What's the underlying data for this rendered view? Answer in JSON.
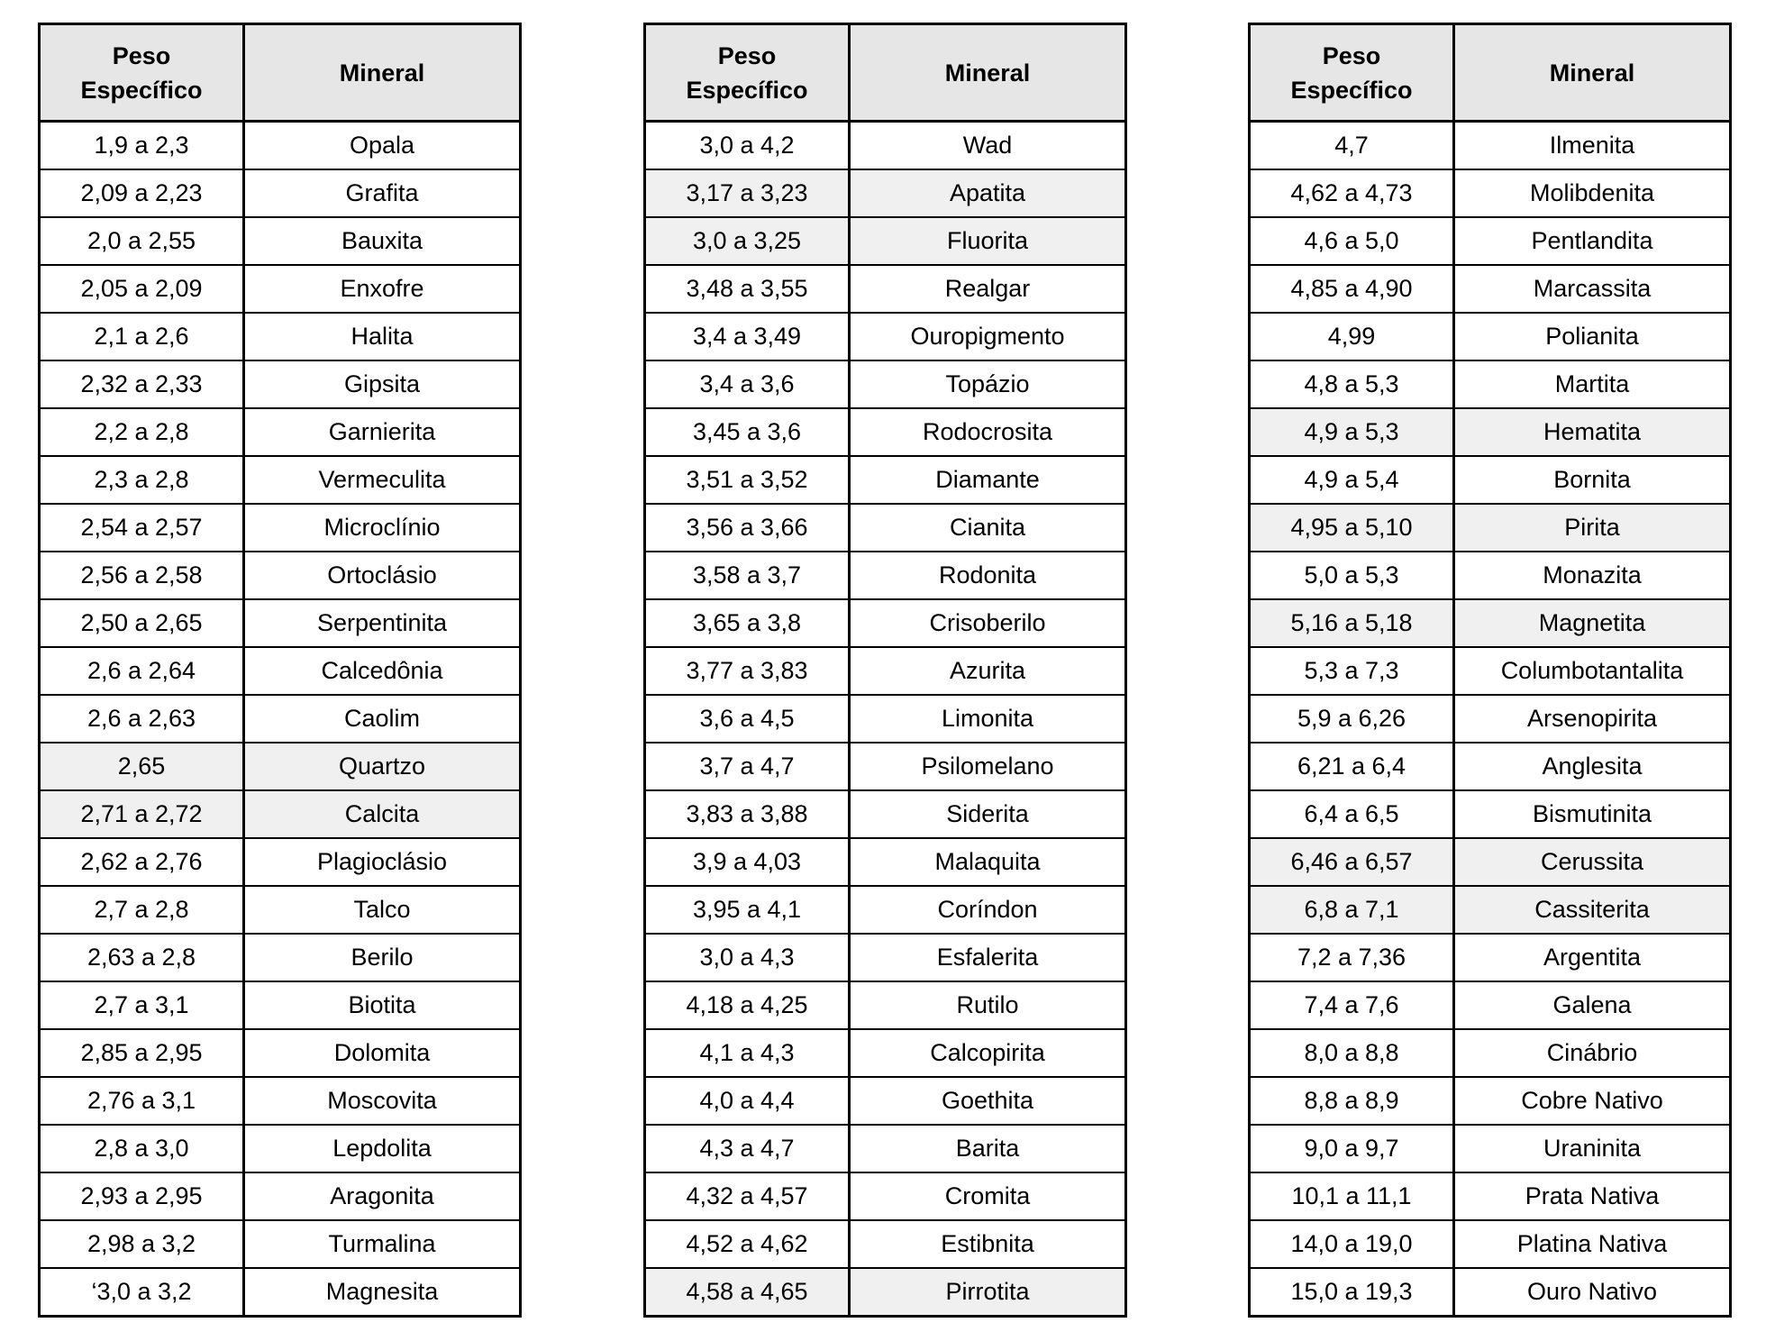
{
  "headers": {
    "peso": "Peso Específico",
    "mineral": "Mineral"
  },
  "tables": [
    {
      "rows": [
        {
          "peso": "1,9 a 2,3",
          "mineral": "Opala",
          "highlight": false
        },
        {
          "peso": "2,09 a 2,23",
          "mineral": "Grafita",
          "highlight": false
        },
        {
          "peso": "2,0 a 2,55",
          "mineral": "Bauxita",
          "highlight": false
        },
        {
          "peso": "2,05 a 2,09",
          "mineral": "Enxofre",
          "highlight": false
        },
        {
          "peso": "2,1 a 2,6",
          "mineral": "Halita",
          "highlight": false
        },
        {
          "peso": "2,32 a 2,33",
          "mineral": "Gipsita",
          "highlight": false
        },
        {
          "peso": "2,2 a 2,8",
          "mineral": "Garnierita",
          "highlight": false
        },
        {
          "peso": "2,3 a 2,8",
          "mineral": "Vermeculita",
          "highlight": false
        },
        {
          "peso": "2,54 a 2,57",
          "mineral": "Microclínio",
          "highlight": false
        },
        {
          "peso": "2,56 a 2,58",
          "mineral": "Ortoclásio",
          "highlight": false
        },
        {
          "peso": "2,50 a 2,65",
          "mineral": "Serpentinita",
          "highlight": false
        },
        {
          "peso": "2,6 a 2,64",
          "mineral": "Calcedônia",
          "highlight": false
        },
        {
          "peso": "2,6 a 2,63",
          "mineral": "Caolim",
          "highlight": false
        },
        {
          "peso": "2,65",
          "mineral": "Quartzo",
          "highlight": true
        },
        {
          "peso": "2,71 a 2,72",
          "mineral": "Calcita",
          "highlight": true
        },
        {
          "peso": "2,62 a 2,76",
          "mineral": "Plagioclásio",
          "highlight": false
        },
        {
          "peso": "2,7 a 2,8",
          "mineral": "Talco",
          "highlight": false
        },
        {
          "peso": "2,63 a 2,8",
          "mineral": "Berilo",
          "highlight": false
        },
        {
          "peso": "2,7 a 3,1",
          "mineral": "Biotita",
          "highlight": false
        },
        {
          "peso": "2,85 a 2,95",
          "mineral": "Dolomita",
          "highlight": false
        },
        {
          "peso": "2,76 a 3,1",
          "mineral": "Moscovita",
          "highlight": false
        },
        {
          "peso": "2,8 a 3,0",
          "mineral": "Lepdolita",
          "highlight": false
        },
        {
          "peso": "2,93 a 2,95",
          "mineral": "Aragonita",
          "highlight": false
        },
        {
          "peso": "2,98 a 3,2",
          "mineral": "Turmalina",
          "highlight": false
        },
        {
          "peso": "‘3,0 a 3,2",
          "mineral": "Magnesita",
          "highlight": false
        }
      ]
    },
    {
      "rows": [
        {
          "peso": "3,0 a 4,2",
          "mineral": "Wad",
          "highlight": false
        },
        {
          "peso": "3,17 a 3,23",
          "mineral": "Apatita",
          "highlight": true
        },
        {
          "peso": "3,0 a 3,25",
          "mineral": "Fluorita",
          "highlight": true
        },
        {
          "peso": "3,48 a 3,55",
          "mineral": "Realgar",
          "highlight": false
        },
        {
          "peso": "3,4 a 3,49",
          "mineral": "Ouropigmento",
          "highlight": false
        },
        {
          "peso": "3,4 a 3,6",
          "mineral": "Topázio",
          "highlight": false
        },
        {
          "peso": "3,45 a 3,6",
          "mineral": "Rodocrosita",
          "highlight": false
        },
        {
          "peso": "3,51 a 3,52",
          "mineral": "Diamante",
          "highlight": false
        },
        {
          "peso": "3,56 a 3,66",
          "mineral": "Cianita",
          "highlight": false
        },
        {
          "peso": "3,58 a 3,7",
          "mineral": "Rodonita",
          "highlight": false
        },
        {
          "peso": "3,65 a 3,8",
          "mineral": "Crisoberilo",
          "highlight": false
        },
        {
          "peso": "3,77 a 3,83",
          "mineral": "Azurita",
          "highlight": false
        },
        {
          "peso": "3,6 a 4,5",
          "mineral": "Limonita",
          "highlight": false
        },
        {
          "peso": "3,7 a 4,7",
          "mineral": "Psilomelano",
          "highlight": false
        },
        {
          "peso": "3,83 a 3,88",
          "mineral": "Siderita",
          "highlight": false
        },
        {
          "peso": "3,9 a 4,03",
          "mineral": "Malaquita",
          "highlight": false
        },
        {
          "peso": "3,95 a 4,1",
          "mineral": "Coríndon",
          "highlight": false
        },
        {
          "peso": "3,0 a 4,3",
          "mineral": "Esfalerita",
          "highlight": false
        },
        {
          "peso": "4,18 a 4,25",
          "mineral": "Rutilo",
          "highlight": false
        },
        {
          "peso": "4,1 a 4,3",
          "mineral": "Calcopirita",
          "highlight": false
        },
        {
          "peso": "4,0 a 4,4",
          "mineral": "Goethita",
          "highlight": false
        },
        {
          "peso": "4,3 a 4,7",
          "mineral": "Barita",
          "highlight": false
        },
        {
          "peso": "4,32 a 4,57",
          "mineral": "Cromita",
          "highlight": false
        },
        {
          "peso": "4,52 a 4,62",
          "mineral": "Estibnita",
          "highlight": false
        },
        {
          "peso": "4,58 a 4,65",
          "mineral": "Pirrotita",
          "highlight": true
        }
      ]
    },
    {
      "rows": [
        {
          "peso": "4,7",
          "mineral": "Ilmenita",
          "highlight": false
        },
        {
          "peso": "4,62 a 4,73",
          "mineral": "Molibdenita",
          "highlight": false
        },
        {
          "peso": "4,6 a 5,0",
          "mineral": "Pentlandita",
          "highlight": false
        },
        {
          "peso": "4,85 a 4,90",
          "mineral": "Marcassita",
          "highlight": false
        },
        {
          "peso": "4,99",
          "mineral": "Polianita",
          "highlight": false
        },
        {
          "peso": "4,8 a 5,3",
          "mineral": "Martita",
          "highlight": false
        },
        {
          "peso": "4,9 a 5,3",
          "mineral": "Hematita",
          "highlight": true
        },
        {
          "peso": "4,9 a 5,4",
          "mineral": "Bornita",
          "highlight": false
        },
        {
          "peso": "4,95 a 5,10",
          "mineral": "Pirita",
          "highlight": true
        },
        {
          "peso": "5,0 a 5,3",
          "mineral": "Monazita",
          "highlight": false
        },
        {
          "peso": "5,16 a 5,18",
          "mineral": "Magnetita",
          "highlight": true
        },
        {
          "peso": "5,3 a 7,3",
          "mineral": "Columbotantalita",
          "highlight": false
        },
        {
          "peso": "5,9 a 6,26",
          "mineral": "Arsenopirita",
          "highlight": false
        },
        {
          "peso": "6,21 a 6,4",
          "mineral": "Anglesita",
          "highlight": false
        },
        {
          "peso": "6,4 a 6,5",
          "mineral": "Bismutinita",
          "highlight": false
        },
        {
          "peso": "6,46 a 6,57",
          "mineral": "Cerussita",
          "highlight": true
        },
        {
          "peso": "6,8 a 7,1",
          "mineral": "Cassiterita",
          "highlight": true
        },
        {
          "peso": "7,2 a 7,36",
          "mineral": "Argentita",
          "highlight": false
        },
        {
          "peso": "7,4 a 7,6",
          "mineral": "Galena",
          "highlight": false
        },
        {
          "peso": "8,0 a 8,8",
          "mineral": "Cinábrio",
          "highlight": false
        },
        {
          "peso": "8,8 a 8,9",
          "mineral": "Cobre Nativo",
          "highlight": false
        },
        {
          "peso": "9,0 a 9,7",
          "mineral": "Uraninita",
          "highlight": false
        },
        {
          "peso": "10,1 a 11,1",
          "mineral": "Prata Nativa",
          "highlight": false
        },
        {
          "peso": "14,0 a 19,0",
          "mineral": "Platina Nativa",
          "highlight": false
        },
        {
          "peso": "15,0 a 19,3",
          "mineral": "Ouro Nativo",
          "highlight": false
        }
      ]
    }
  ]
}
